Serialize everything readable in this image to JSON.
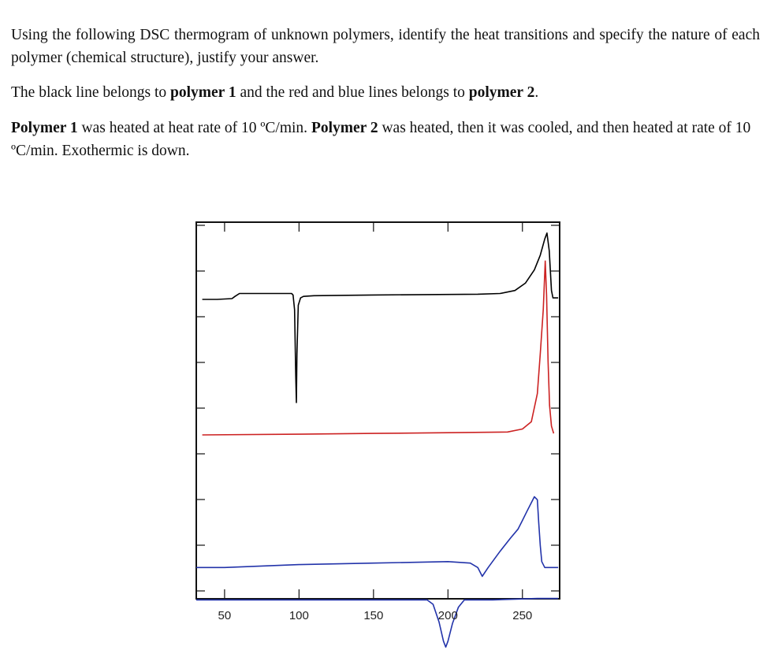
{
  "question": {
    "p1": "Using the following DSC thermogram of unknown polymers, identify the heat transitions and specify the nature of each polymer (chemical structure), justify your answer.",
    "p2_a": "The black line belongs to ",
    "p2_b": "polymer 1",
    "p2_c": " and the red and blue lines belongs to ",
    "p2_d": "polymer 2",
    "p2_e": ".",
    "p3_a": "Polymer 1",
    "p3_b": " was heated at heat rate of 10 ºC/min. ",
    "p3_c": "Polymer 2",
    "p3_d": " was heated, then it was cooled, and then heated at rate of 10 ºC/min. Exothermic is down."
  },
  "chart_data": {
    "type": "line",
    "title": "",
    "xlabel": "",
    "ylabel": "",
    "xlim": [
      31,
      275
    ],
    "x_ticks": [
      50,
      100,
      150,
      200,
      250
    ],
    "y_ticks_visible": false,
    "grid": false,
    "legend": "none",
    "series": [
      {
        "color": "#000000",
        "points": [
          [
            35,
            0.92
          ],
          [
            45,
            0.92
          ],
          [
            55,
            0.925
          ],
          [
            57,
            0.94
          ],
          [
            60,
            0.96
          ],
          [
            90,
            0.96
          ],
          [
            95,
            0.96
          ],
          [
            96,
            0.95
          ],
          [
            97,
            0.85
          ],
          [
            97.8,
            0.4
          ],
          [
            98.2,
            0.22
          ],
          [
            98.6,
            0.55
          ],
          [
            99.5,
            0.88
          ],
          [
            101,
            0.93
          ],
          [
            103,
            0.94
          ],
          [
            110,
            0.945
          ],
          [
            150,
            0.95
          ],
          [
            220,
            0.955
          ],
          [
            235,
            0.96
          ],
          [
            245,
            0.98
          ],
          [
            252,
            1.03
          ],
          [
            258,
            1.12
          ],
          [
            262,
            1.22
          ],
          [
            265,
            1.33
          ],
          [
            266.5,
            1.37
          ],
          [
            268,
            1.25
          ],
          [
            269.5,
            0.98
          ],
          [
            270.5,
            0.93
          ],
          [
            274,
            0.93
          ]
        ]
      },
      {
        "color": "#cc2222",
        "points": [
          [
            35,
            0.0
          ],
          [
            100,
            0.005
          ],
          [
            150,
            0.01
          ],
          [
            200,
            0.015
          ],
          [
            240,
            0.02
          ],
          [
            250,
            0.04
          ],
          [
            256,
            0.09
          ],
          [
            260,
            0.28
          ],
          [
            262,
            0.55
          ],
          [
            264,
            0.85
          ],
          [
            265.3,
            1.18
          ],
          [
            266.2,
            0.95
          ],
          [
            267.2,
            0.5
          ],
          [
            268.2,
            0.2
          ],
          [
            269.5,
            0.06
          ],
          [
            271,
            0.01
          ]
        ]
      },
      {
        "color": "#2233aa",
        "points": [
          [
            31,
            -0.9
          ],
          [
            50,
            -0.9
          ],
          [
            100,
            -0.88
          ],
          [
            150,
            -0.87
          ],
          [
            200,
            -0.86
          ],
          [
            215,
            -0.87
          ],
          [
            220,
            -0.9
          ],
          [
            223,
            -0.96
          ],
          [
            227,
            -0.9
          ],
          [
            235,
            -0.79
          ],
          [
            242,
            -0.7
          ],
          [
            247,
            -0.64
          ],
          [
            250,
            -0.58
          ],
          [
            253,
            -0.52
          ],
          [
            256,
            -0.46
          ],
          [
            258,
            -0.42
          ],
          [
            260,
            -0.44
          ],
          [
            261,
            -0.6
          ],
          [
            262,
            -0.75
          ],
          [
            263,
            -0.86
          ],
          [
            265,
            -0.9
          ],
          [
            274,
            -0.9
          ]
        ]
      },
      {
        "color": "#2233aa",
        "points": [
          [
            31,
            -1.12
          ],
          [
            100,
            -1.12
          ],
          [
            150,
            -1.12
          ],
          [
            180,
            -1.12
          ],
          [
            186,
            -1.12
          ],
          [
            190,
            -1.15
          ],
          [
            194,
            -1.27
          ],
          [
            197,
            -1.4
          ],
          [
            198.5,
            -1.44
          ],
          [
            200,
            -1.4
          ],
          [
            203,
            -1.28
          ],
          [
            207,
            -1.17
          ],
          [
            211,
            -1.12
          ],
          [
            230,
            -1.12
          ],
          [
            260,
            -1.11
          ],
          [
            274,
            -1.11
          ]
        ]
      }
    ]
  }
}
